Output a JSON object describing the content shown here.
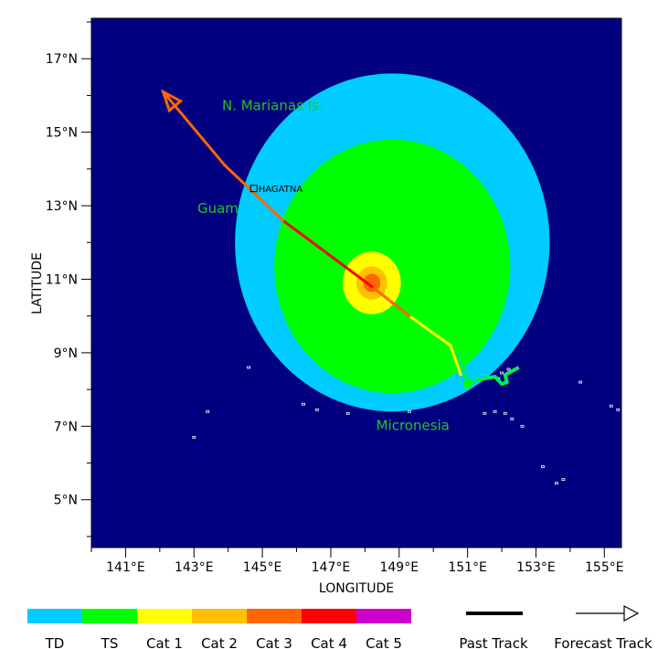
{
  "axes": {
    "xlabel": "LONGITUDE",
    "ylabel": "LATITUDE",
    "xticks": [
      {
        "value": 141,
        "label": "141°E"
      },
      {
        "value": 143,
        "label": "143°E"
      },
      {
        "value": 145,
        "label": "145°E"
      },
      {
        "value": 147,
        "label": "147°E"
      },
      {
        "value": 149,
        "label": "149°E"
      },
      {
        "value": 151,
        "label": "151°E"
      },
      {
        "value": 153,
        "label": "153°E"
      },
      {
        "value": 155,
        "label": "155°E"
      }
    ],
    "yticks": [
      {
        "value": 17,
        "label": "17°N"
      },
      {
        "value": 15,
        "label": "15°N"
      },
      {
        "value": 13,
        "label": "13°N"
      },
      {
        "value": 11,
        "label": "11°N"
      },
      {
        "value": 9,
        "label": "9°N"
      },
      {
        "value": 7,
        "label": "7°N"
      },
      {
        "value": 5,
        "label": "5°N"
      }
    ],
    "lon_range": [
      140.0,
      155.5
    ],
    "lat_range": [
      3.7,
      18.1
    ]
  },
  "colors": {
    "ocean": "#000080",
    "frame": "#000000",
    "label_green": "#22c522",
    "land": "#ffffff"
  },
  "geo_labels": [
    {
      "name": "N. Marianas Is.",
      "lon": 145.3,
      "lat": 15.6
    },
    {
      "name": "Guam",
      "lon": 143.7,
      "lat": 12.8
    },
    {
      "name": "Micronesia",
      "lon": 149.4,
      "lat": 6.9
    }
  ],
  "city": {
    "name": "HAGATNA",
    "lon": 144.75,
    "lat": 13.47
  },
  "wind_fields": [
    {
      "category": "TD",
      "color": "#00ccff",
      "lon": 148.8,
      "lat": 12.0,
      "radius_deg": 4.6
    },
    {
      "category": "TS",
      "color": "#00ff00",
      "lon": 148.8,
      "lat": 11.35,
      "radius_deg": 3.45
    },
    {
      "category": "Cat 1",
      "color": "#ffff00",
      "lon": 148.2,
      "lat": 10.9,
      "radius_deg": 0.85
    },
    {
      "category": "Cat 2",
      "color": "#ffc000",
      "lon": 148.2,
      "lat": 10.9,
      "radius_deg": 0.45
    },
    {
      "category": "Cat 3",
      "color": "#ff6600",
      "lon": 148.2,
      "lat": 10.9,
      "radius_deg": 0.25
    }
  ],
  "past_track": [
    {
      "lon": 152.5,
      "lat": 8.6
    },
    {
      "lon": 152.1,
      "lat": 8.4
    },
    {
      "lon": 152.15,
      "lat": 8.2
    },
    {
      "lon": 152.0,
      "lat": 8.15
    },
    {
      "lon": 151.8,
      "lat": 8.35
    },
    {
      "lon": 151.5,
      "lat": 8.3
    },
    {
      "lon": 151.0,
      "lat": 8.2
    },
    {
      "lon": 150.9,
      "lat": 8.5
    },
    {
      "lon": 150.7,
      "lat": 9.0
    }
  ],
  "forecast_track": [
    {
      "lon": 150.8,
      "lat": 8.4,
      "category": "TS"
    },
    {
      "lon": 150.5,
      "lat": 9.2,
      "category": "Cat 1"
    },
    {
      "lon": 149.3,
      "lat": 10.0,
      "category": "Cat 1"
    },
    {
      "lon": 148.2,
      "lat": 10.8,
      "category": "Cat 3"
    },
    {
      "lon": 145.6,
      "lat": 12.6,
      "category": "Cat 4"
    },
    {
      "lon": 143.9,
      "lat": 14.1,
      "category": "Cat 3"
    },
    {
      "lon": 142.1,
      "lat": 16.1,
      "category": "Cat 3"
    }
  ],
  "islands": [
    {
      "lon": 152.2,
      "lat": 8.55
    },
    {
      "lon": 152.0,
      "lat": 8.45
    },
    {
      "lon": 151.9,
      "lat": 8.3
    },
    {
      "lon": 152.1,
      "lat": 7.35
    },
    {
      "lon": 152.3,
      "lat": 7.2
    },
    {
      "lon": 151.8,
      "lat": 7.4
    },
    {
      "lon": 152.6,
      "lat": 7.0
    },
    {
      "lon": 154.3,
      "lat": 8.2
    },
    {
      "lon": 155.2,
      "lat": 7.55
    },
    {
      "lon": 155.4,
      "lat": 7.45
    },
    {
      "lon": 153.6,
      "lat": 5.45
    },
    {
      "lon": 153.8,
      "lat": 5.55
    },
    {
      "lon": 153.2,
      "lat": 5.9
    },
    {
      "lon": 146.2,
      "lat": 7.6
    },
    {
      "lon": 146.6,
      "lat": 7.45
    },
    {
      "lon": 147.5,
      "lat": 7.35
    },
    {
      "lon": 149.3,
      "lat": 7.4
    },
    {
      "lon": 143.4,
      "lat": 7.4
    },
    {
      "lon": 143.0,
      "lat": 6.7
    },
    {
      "lon": 144.6,
      "lat": 8.6
    },
    {
      "lon": 151.5,
      "lat": 7.35
    }
  ],
  "legend": {
    "categories": [
      {
        "label": "TD",
        "color": "#00ccff"
      },
      {
        "label": "TS",
        "color": "#00ff00"
      },
      {
        "label": "Cat 1",
        "color": "#ffff00"
      },
      {
        "label": "Cat 2",
        "color": "#ffc000"
      },
      {
        "label": "Cat 3",
        "color": "#ff6600"
      },
      {
        "label": "Cat 4",
        "color": "#ff0000"
      },
      {
        "label": "Cat 5",
        "color": "#cc00cc"
      }
    ],
    "past_track_label": "Past Track",
    "forecast_track_label": "Forecast Track"
  }
}
